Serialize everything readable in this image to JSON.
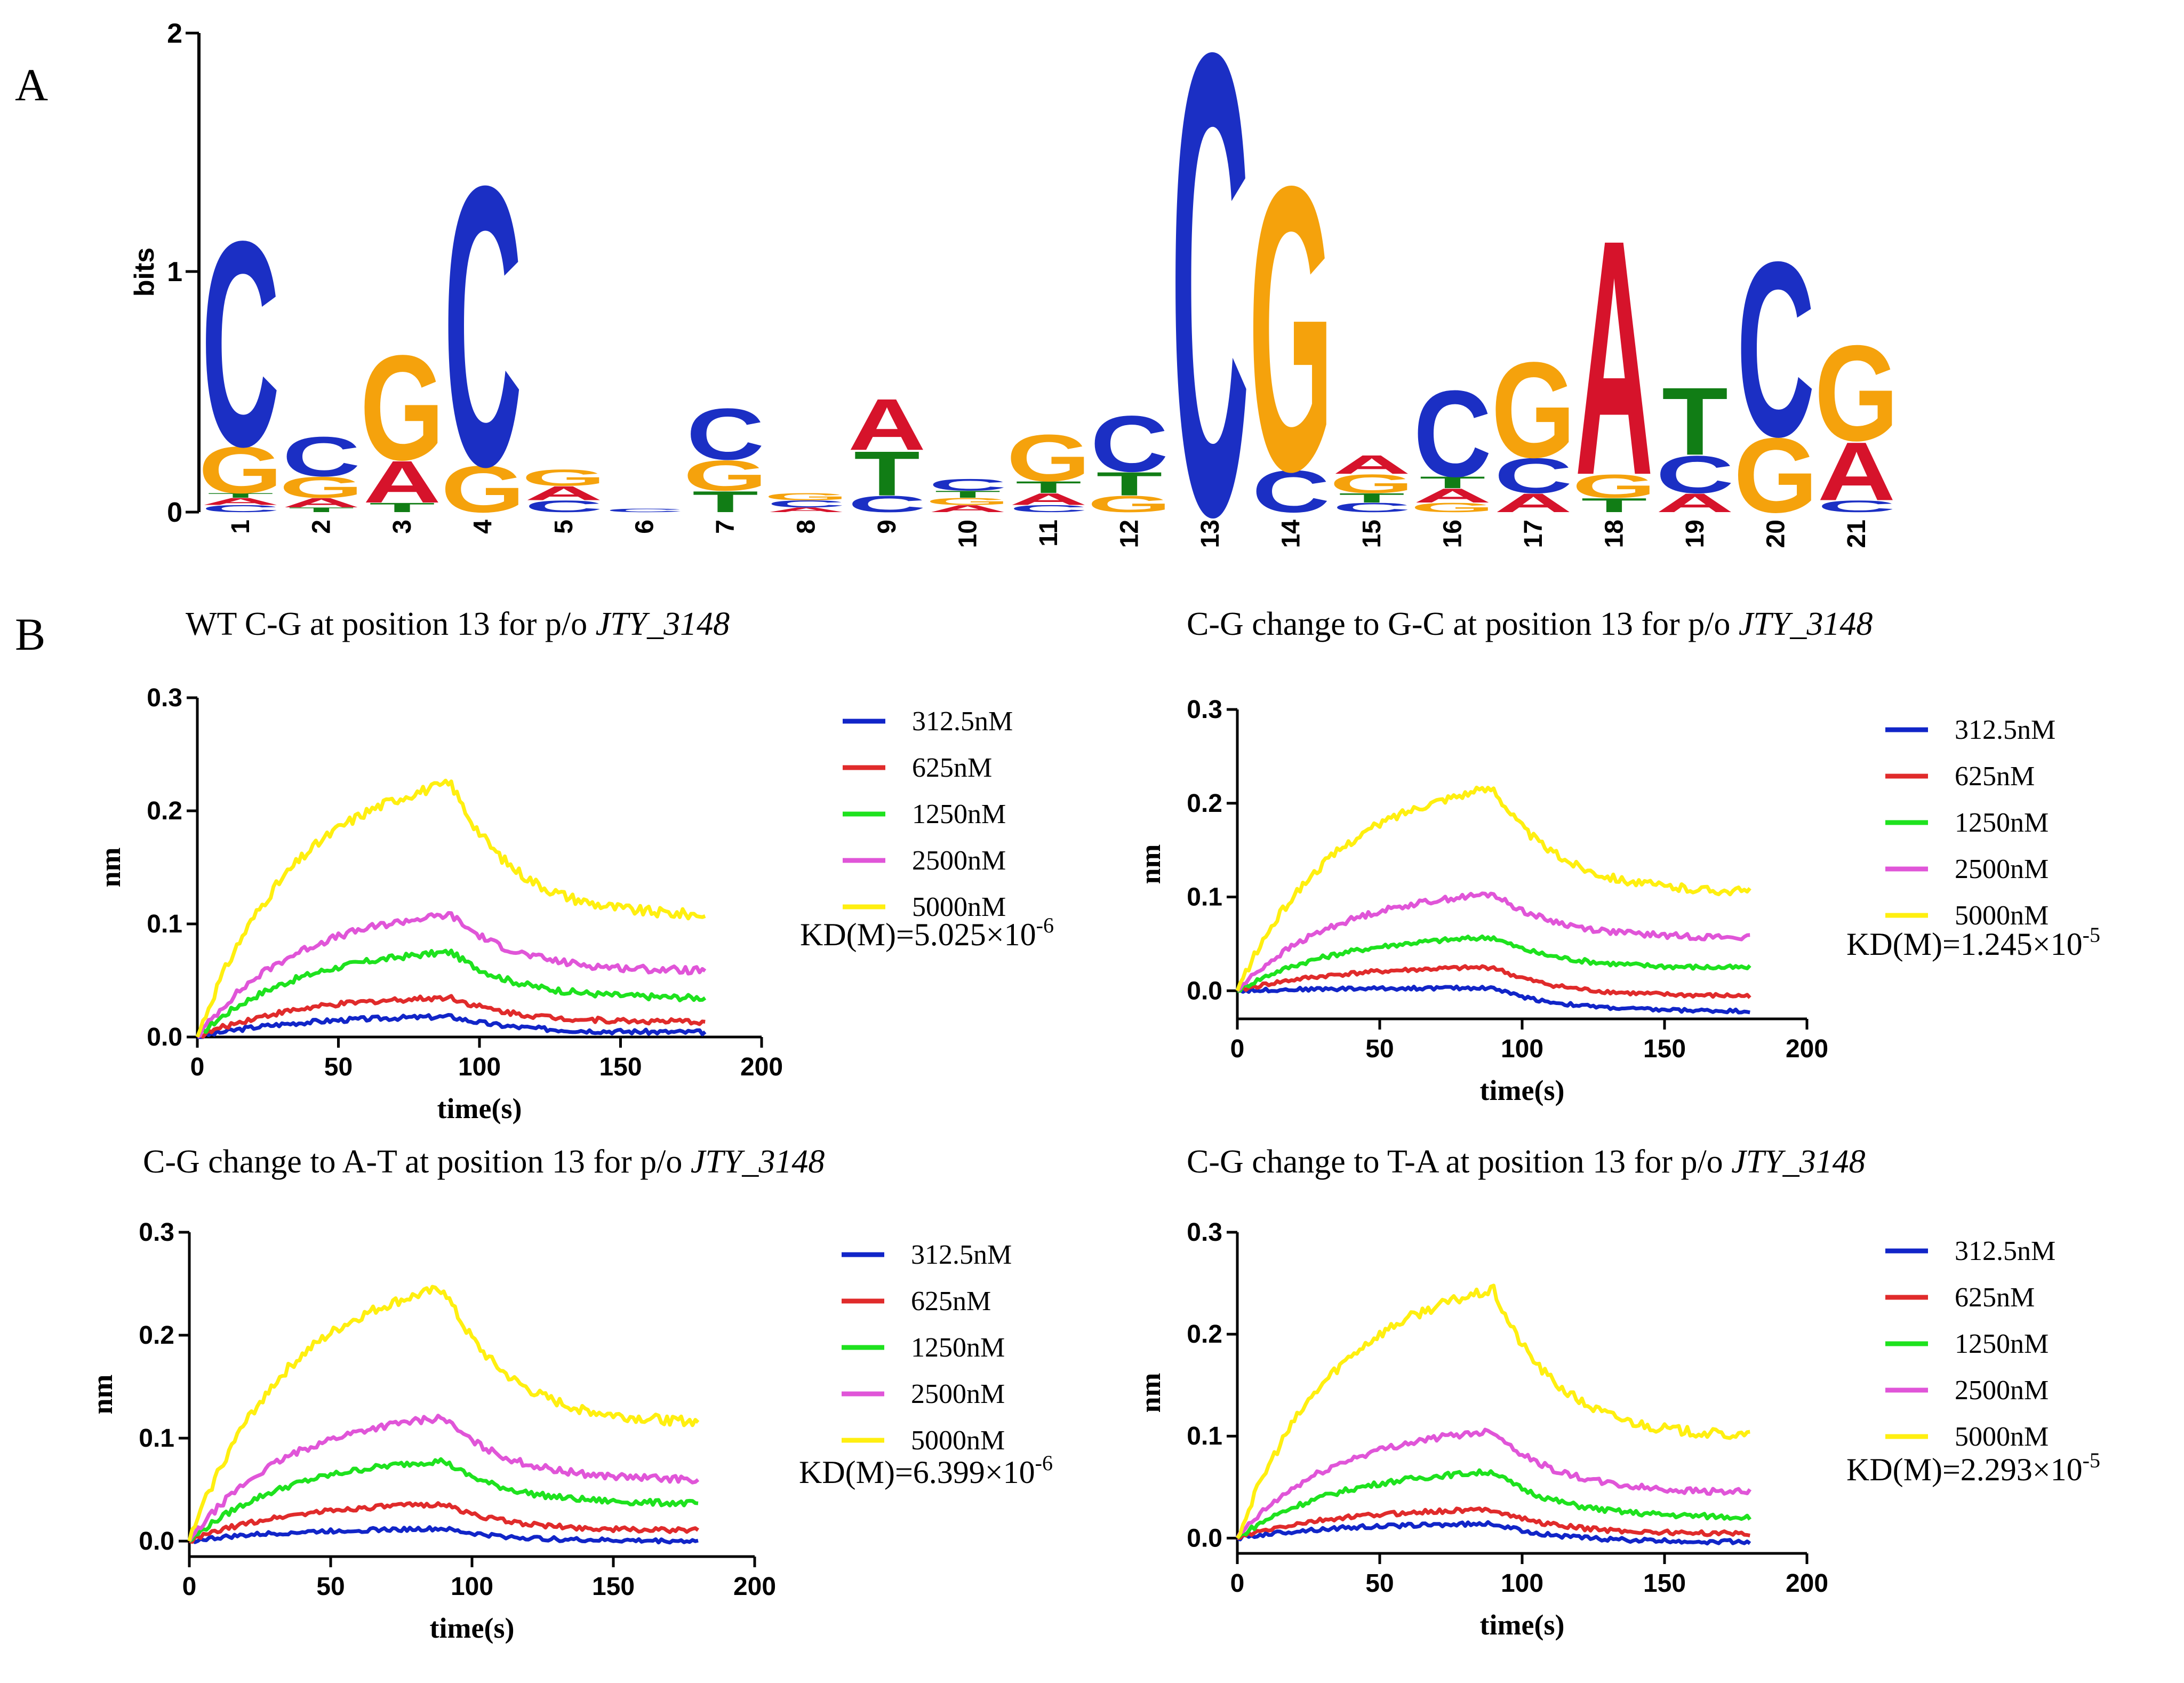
{
  "panel_a": {
    "label": "A",
    "chart_data": {
      "type": "sequence-logo",
      "ylabel": "bits",
      "ylim": [
        0,
        2
      ],
      "yticks": [
        "0",
        "1",
        "2"
      ],
      "positions": [
        {
          "pos": "1",
          "stack": [
            {
              "b": "C",
              "h": 0.03
            },
            {
              "b": "A",
              "h": 0.03
            },
            {
              "b": "T",
              "h": 0.02
            },
            {
              "b": "G",
              "h": 0.2
            },
            {
              "b": "C",
              "h": 0.88
            }
          ]
        },
        {
          "pos": "2",
          "stack": [
            {
              "b": "T",
              "h": 0.02
            },
            {
              "b": "A",
              "h": 0.04
            },
            {
              "b": "G",
              "h": 0.09
            },
            {
              "b": "C",
              "h": 0.17
            }
          ]
        },
        {
          "pos": "3",
          "stack": [
            {
              "b": "T",
              "h": 0.04
            },
            {
              "b": "A",
              "h": 0.18
            },
            {
              "b": "G",
              "h": 0.45
            }
          ]
        },
        {
          "pos": "4",
          "stack": [
            {
              "b": "G",
              "h": 0.2
            },
            {
              "b": "C",
              "h": 1.2
            }
          ]
        },
        {
          "pos": "5",
          "stack": [
            {
              "b": "C",
              "h": 0.05
            },
            {
              "b": "A",
              "h": 0.06
            },
            {
              "b": "G",
              "h": 0.07
            }
          ]
        },
        {
          "pos": "6",
          "stack": [
            {
              "b": "C",
              "h": 0.015
            }
          ]
        },
        {
          "pos": "7",
          "stack": [
            {
              "b": "T",
              "h": 0.09
            },
            {
              "b": "G",
              "h": 0.13
            },
            {
              "b": "C",
              "h": 0.22
            }
          ]
        },
        {
          "pos": "8",
          "stack": [
            {
              "b": "A",
              "h": 0.02
            },
            {
              "b": "C",
              "h": 0.03
            },
            {
              "b": "G",
              "h": 0.03
            }
          ]
        },
        {
          "pos": "9",
          "stack": [
            {
              "b": "C",
              "h": 0.07
            },
            {
              "b": "T",
              "h": 0.19
            },
            {
              "b": "A",
              "h": 0.22
            }
          ]
        },
        {
          "pos": "10",
          "stack": [
            {
              "b": "A",
              "h": 0.03
            },
            {
              "b": "G",
              "h": 0.03
            },
            {
              "b": "T",
              "h": 0.03
            },
            {
              "b": "C",
              "h": 0.05
            }
          ]
        },
        {
          "pos": "11",
          "stack": [
            {
              "b": "C",
              "h": 0.03
            },
            {
              "b": "A",
              "h": 0.05
            },
            {
              "b": "T",
              "h": 0.05
            },
            {
              "b": "G",
              "h": 0.2
            }
          ]
        },
        {
          "pos": "12",
          "stack": [
            {
              "b": "G",
              "h": 0.07
            },
            {
              "b": "T",
              "h": 0.1
            },
            {
              "b": "C",
              "h": 0.24
            }
          ]
        },
        {
          "pos": "13",
          "stack": [
            {
              "b": "C",
              "h": 1.98
            }
          ]
        },
        {
          "pos": "14",
          "stack": [
            {
              "b": "C",
              "h": 0.18
            },
            {
              "b": "G",
              "h": 1.22
            }
          ]
        },
        {
          "pos": "15",
          "stack": [
            {
              "b": "C",
              "h": 0.04
            },
            {
              "b": "T",
              "h": 0.04
            },
            {
              "b": "G",
              "h": 0.08
            },
            {
              "b": "A",
              "h": 0.08
            }
          ]
        },
        {
          "pos": "16",
          "stack": [
            {
              "b": "G",
              "h": 0.04
            },
            {
              "b": "A",
              "h": 0.06
            },
            {
              "b": "T",
              "h": 0.05
            },
            {
              "b": "C",
              "h": 0.37
            }
          ]
        },
        {
          "pos": "17",
          "stack": [
            {
              "b": "A",
              "h": 0.08
            },
            {
              "b": "C",
              "h": 0.15
            },
            {
              "b": "G",
              "h": 0.41
            }
          ]
        },
        {
          "pos": "18",
          "stack": [
            {
              "b": "T",
              "h": 0.06
            },
            {
              "b": "G",
              "h": 0.1
            },
            {
              "b": "A",
              "h": 1.01
            }
          ]
        },
        {
          "pos": "19",
          "stack": [
            {
              "b": "A",
              "h": 0.08
            },
            {
              "b": "C",
              "h": 0.16
            },
            {
              "b": "T",
              "h": 0.29
            }
          ]
        },
        {
          "pos": "20",
          "stack": [
            {
              "b": "G",
              "h": 0.32
            },
            {
              "b": "C",
              "h": 0.75
            }
          ]
        },
        {
          "pos": "21",
          "stack": [
            {
              "b": "C",
              "h": 0.05
            },
            {
              "b": "A",
              "h": 0.25
            },
            {
              "b": "G",
              "h": 0.41
            }
          ]
        }
      ]
    }
  },
  "panel_b": {
    "label": "B",
    "chart_data": [
      {
        "type": "line",
        "title_prefix": "WT  C-G at position 13 for p/o ",
        "title_gene": "JTY_3148",
        "xlabel": "time(s)",
        "ylabel": "nm",
        "xlim": [
          0,
          200
        ],
        "ylim": [
          0,
          0.3
        ],
        "xticks": [
          "0",
          "50",
          "100",
          "150",
          "200"
        ],
        "yticks": [
          "0.0",
          "0.1",
          "0.2",
          "0.3"
        ],
        "kd_text": "KD(M)=5.025×10",
        "kd_exp": "-6",
        "series": [
          {
            "name": "312.5nM",
            "peak": 0.018,
            "end": 0.004
          },
          {
            "name": "625nM",
            "peak": 0.035,
            "end": 0.013
          },
          {
            "name": "1250nM",
            "peak": 0.075,
            "end": 0.034
          },
          {
            "name": "2500nM",
            "peak": 0.108,
            "end": 0.058
          },
          {
            "name": "5000nM",
            "peak": 0.224,
            "end": 0.106
          }
        ]
      },
      {
        "type": "line",
        "title_prefix": "C-G change to G-C at position 13 for p/o ",
        "title_gene": "JTY_3148",
        "xlabel": "time(s)",
        "ylabel": "nm",
        "xlim": [
          0,
          200
        ],
        "ylim": [
          -0.03,
          0.3
        ],
        "xticks": [
          "0",
          "50",
          "100",
          "150",
          "200"
        ],
        "yticks": [
          "0.0",
          "0.1",
          "0.2",
          "0.3"
        ],
        "kd_text": "KD(M)=1.245×10",
        "kd_exp": "-5",
        "series": [
          {
            "name": "312.5nM",
            "peak": 0.003,
            "end": -0.022
          },
          {
            "name": "625nM",
            "peak": 0.025,
            "end": -0.006
          },
          {
            "name": "1250nM",
            "peak": 0.057,
            "end": 0.024
          },
          {
            "name": "2500nM",
            "peak": 0.103,
            "end": 0.056
          },
          {
            "name": "5000nM",
            "peak": 0.216,
            "end": 0.104
          }
        ]
      },
      {
        "type": "line",
        "title_prefix": "C-G change to A-T at position 13 for p/o ",
        "title_gene": "JTY_3148",
        "xlabel": "time(s)",
        "ylabel": "nm",
        "xlim": [
          0,
          200
        ],
        "ylim": [
          -0.015,
          0.3
        ],
        "xticks": [
          "0",
          "50",
          "100",
          "150",
          "200"
        ],
        "yticks": [
          "0.0",
          "0.1",
          "0.2",
          "0.3"
        ],
        "kd_text": "KD(M)=6.399×10",
        "kd_exp": "-6",
        "series": [
          {
            "name": "312.5nM",
            "peak": 0.012,
            "end": 0.0
          },
          {
            "name": "625nM",
            "peak": 0.036,
            "end": 0.01
          },
          {
            "name": "1250nM",
            "peak": 0.078,
            "end": 0.036
          },
          {
            "name": "2500nM",
            "peak": 0.12,
            "end": 0.059
          },
          {
            "name": "5000nM",
            "peak": 0.245,
            "end": 0.114
          }
        ]
      },
      {
        "type": "line",
        "title_prefix": "C-G change to T-A at position 13 for p/o ",
        "title_gene": "JTY_3148",
        "xlabel": "time(s)",
        "ylabel": "nm",
        "xlim": [
          0,
          200
        ],
        "ylim": [
          -0.015,
          0.3
        ],
        "xticks": [
          "0",
          "50",
          "100",
          "150",
          "200"
        ],
        "yticks": [
          "0.0",
          "0.1",
          "0.2",
          "0.3"
        ],
        "kd_text": "KD(M)=2.293×10",
        "kd_exp": "-5",
        "series": [
          {
            "name": "312.5nM",
            "peak": 0.014,
            "end": -0.004
          },
          {
            "name": "625nM",
            "peak": 0.028,
            "end": 0.004
          },
          {
            "name": "1250nM",
            "peak": 0.065,
            "end": 0.02
          },
          {
            "name": "2500nM",
            "peak": 0.105,
            "end": 0.044
          },
          {
            "name": "5000nM",
            "peak": 0.243,
            "end": 0.098
          }
        ]
      }
    ]
  },
  "colors": {
    "A": "#d6132b",
    "C": "#1b2fc4",
    "G": "#f5a20c",
    "T": "#117d15",
    "series": [
      "#1125c8",
      "#e02b2b",
      "#1ee21e",
      "#e055d8",
      "#ffef10"
    ]
  }
}
